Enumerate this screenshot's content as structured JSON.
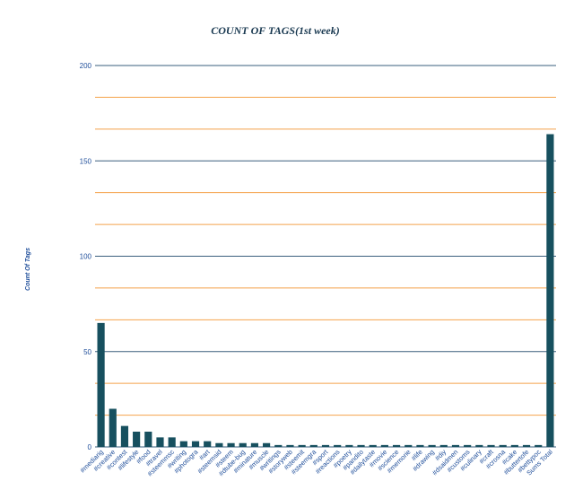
{
  "chart_data": {
    "type": "bar",
    "title": "COUNT OF TAGS(1st week)",
    "xlabel": "",
    "ylabel": "Count Of Tags",
    "ylim": [
      0,
      200
    ],
    "yticks": [
      0,
      50,
      100,
      150,
      200
    ],
    "grid": true,
    "legend": "none",
    "colors": {
      "bar": "#17505f",
      "major_grid": "#3a5f7d",
      "minor_grid": "#f4a24b",
      "text": "#1f4e9a",
      "title": "#17374f"
    },
    "categories": [
      "#mediarig",
      "#creative",
      "#contest",
      "#lifestyle",
      "#food",
      "#travel",
      "#steemmsc",
      "#writing",
      "#photogra",
      "#art",
      "#steemsid",
      "#steem",
      "#dtube-bug",
      "#minature",
      "#muscle",
      "#writings",
      "#storyweb",
      "#steemit",
      "#steemgra",
      "#sport",
      "#reactions",
      "#poetry",
      "#pandito",
      "#dailytaste",
      "#movie",
      "#science",
      "#memorie",
      "#life",
      "#drawing",
      "#diy",
      "#dsaidmen",
      "#customs",
      "#culinary",
      "#craft",
      "#crosna",
      "#cake",
      "#buttertofe",
      "#bettypoc",
      "Sums Total"
    ],
    "values": [
      65,
      20,
      11,
      8,
      8,
      5,
      5,
      3,
      3,
      3,
      2,
      2,
      2,
      2,
      2,
      1,
      1,
      1,
      1,
      1,
      1,
      1,
      1,
      1,
      1,
      1,
      1,
      1,
      1,
      1,
      1,
      1,
      1,
      1,
      1,
      1,
      1,
      1,
      164
    ]
  }
}
